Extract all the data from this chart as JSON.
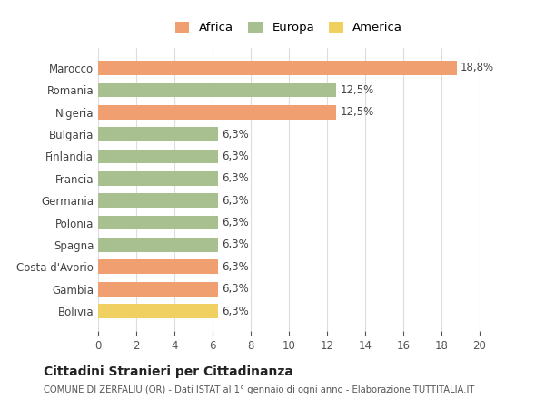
{
  "categories": [
    "Bolivia",
    "Gambia",
    "Costa d'Avorio",
    "Spagna",
    "Polonia",
    "Germania",
    "Francia",
    "Finlandia",
    "Bulgaria",
    "Nigeria",
    "Romania",
    "Marocco"
  ],
  "values": [
    6.3,
    6.3,
    6.3,
    6.3,
    6.3,
    6.3,
    6.3,
    6.3,
    6.3,
    12.5,
    12.5,
    18.8
  ],
  "continents": [
    "America",
    "Africa",
    "Africa",
    "Europa",
    "Europa",
    "Europa",
    "Europa",
    "Europa",
    "Europa",
    "Africa",
    "Europa",
    "Africa"
  ],
  "colors": {
    "Africa": "#F0A070",
    "Europa": "#A8C090",
    "America": "#F0D060"
  },
  "legend_labels": [
    "Africa",
    "Europa",
    "America"
  ],
  "legend_colors": [
    "#F0A070",
    "#A8C090",
    "#F0D060"
  ],
  "value_labels": [
    "6,3%",
    "6,3%",
    "6,3%",
    "6,3%",
    "6,3%",
    "6,3%",
    "6,3%",
    "6,3%",
    "6,3%",
    "12,5%",
    "12,5%",
    "18,8%"
  ],
  "xlim": [
    0,
    20
  ],
  "xticks": [
    0,
    2,
    4,
    6,
    8,
    10,
    12,
    14,
    16,
    18,
    20
  ],
  "title": "Cittadini Stranieri per Cittadinanza",
  "subtitle": "COMUNE DI ZERFALIU (OR) - Dati ISTAT al 1° gennaio di ogni anno - Elaborazione TUTTITALIA.IT",
  "bg_color": "#FFFFFF",
  "grid_color": "#DDDDDD"
}
